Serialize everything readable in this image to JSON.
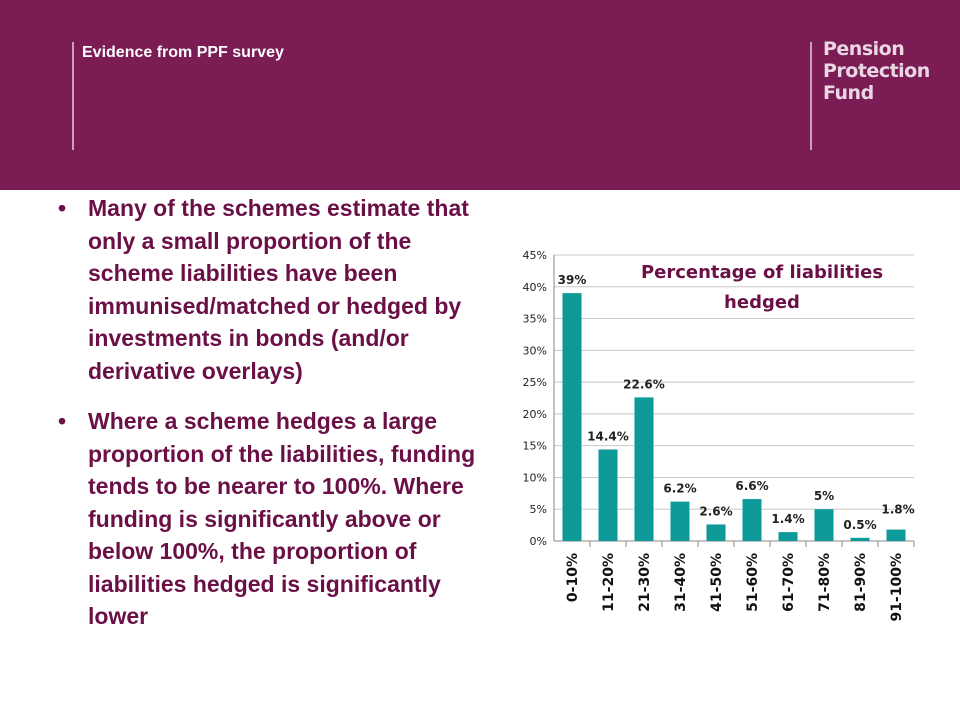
{
  "header": {
    "title": "Evidence from PPF survey",
    "logo_lines": [
      "Pension",
      "Protection",
      "Fund"
    ],
    "background_color": "#7b1c55"
  },
  "bullets": [
    "Many of the schemes estimate that only a small proportion of the scheme liabilities have been immunised/matched or hedged by investments in bonds (and/or derivative overlays)",
    "Where a scheme hedges a large proportion of the liabilities, funding tends to be nearer to 100%. Where funding is significantly above or below 100%, the proportion of liabilities hedged is significantly lower"
  ],
  "bullet_color": "#6b1047",
  "chart_data": {
    "type": "bar",
    "title": "Percentage of liabilities hedged",
    "categories": [
      "0-10%",
      "11-20%",
      "21-30%",
      "31-40%",
      "41-50%",
      "51-60%",
      "61-70%",
      "71-80%",
      "81-90%",
      "91-100%"
    ],
    "values": [
      39,
      14.4,
      22.6,
      6.2,
      2.6,
      6.6,
      1.4,
      5,
      0.5,
      1.8
    ],
    "data_labels": [
      "39%",
      "14.4%",
      "22.6%",
      "6.2%",
      "2.6%",
      "6.6%",
      "1.4%",
      "5%",
      "0.5%",
      "1.8%"
    ],
    "y_ticks": [
      "0%",
      "5%",
      "10%",
      "15%",
      "20%",
      "25%",
      "30%",
      "35%",
      "40%",
      "45%"
    ],
    "ylim": [
      0,
      45
    ],
    "grid": true,
    "bar_color": "#0f9a9a",
    "title_color": "#6b1047"
  }
}
